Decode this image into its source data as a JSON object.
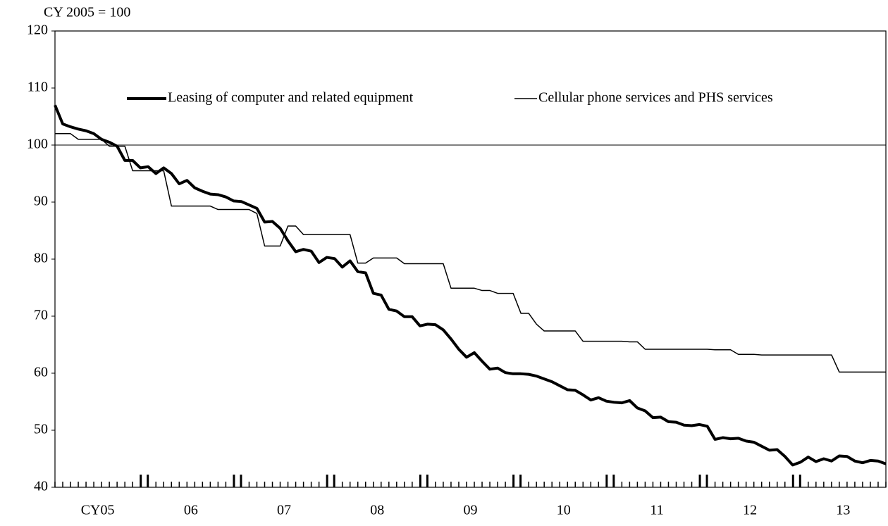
{
  "chart_data": {
    "type": "line",
    "y_label": "CY 2005 = 100",
    "categories": [
      null,
      null,
      null,
      null,
      null,
      null,
      "CY05",
      null,
      null,
      null,
      null,
      null,
      null,
      null,
      null,
      null,
      null,
      null,
      "06",
      null,
      null,
      null,
      null,
      null,
      null,
      null,
      null,
      null,
      null,
      null,
      "07",
      null,
      null,
      null,
      null,
      null,
      null,
      null,
      null,
      null,
      null,
      null,
      "08",
      null,
      null,
      null,
      null,
      null,
      null,
      null,
      null,
      null,
      null,
      null,
      "09",
      null,
      null,
      null,
      null,
      null,
      null,
      null,
      null,
      null,
      null,
      null,
      "10",
      null,
      null,
      null,
      null,
      null,
      null,
      null,
      null,
      null,
      null,
      null,
      "11",
      null,
      null,
      null,
      null,
      null,
      null,
      null,
      null,
      null,
      null,
      null,
      "12",
      null,
      null,
      null,
      null,
      null,
      null,
      null,
      null,
      null,
      null,
      null,
      "13",
      null,
      null,
      null,
      null,
      null
    ],
    "series": [
      {
        "name": "Leasing of computer and related equipment",
        "color": "#000000",
        "width": 4,
        "values": [
          107,
          103.7,
          103.2,
          102.8,
          102.5,
          102,
          101,
          100.5,
          99.8,
          97.3,
          97.3,
          96,
          96.2,
          95,
          96,
          95,
          93.2,
          93.8,
          92.5,
          91.9,
          91.4,
          91.3,
          90.9,
          90.2,
          90.1,
          89.5,
          88.9,
          86.5,
          86.6,
          85.4,
          83.2,
          81.3,
          81.7,
          81.4,
          79.4,
          80.3,
          80.1,
          78.6,
          79.7,
          77.8,
          77.6,
          74,
          73.7,
          71.2,
          70.9,
          69.9,
          69.9,
          68.3,
          68.6,
          68.5,
          67.6,
          66,
          64.2,
          62.8,
          63.6,
          62.1,
          60.7,
          60.9,
          60.1,
          59.9,
          59.9,
          59.8,
          59.5,
          59,
          58.5,
          57.8,
          57.1,
          57,
          56.2,
          55.3,
          55.7,
          55.1,
          54.9,
          54.8,
          55.2,
          53.9,
          53.4,
          52.2,
          52.3,
          51.5,
          51.4,
          50.9,
          50.8,
          51,
          50.7,
          48.4,
          48.7,
          48.5,
          48.6,
          48.1,
          47.9,
          47.2,
          46.5,
          46.6,
          45.4,
          43.9,
          44.4,
          45.3,
          44.5,
          45,
          44.6,
          45.5,
          45.4,
          44.6,
          44.3,
          44.7,
          44.6,
          44.1
        ]
      },
      {
        "name": "Cellular phone services and PHS services",
        "color": "#000000",
        "width": 1.5,
        "values": [
          102,
          102,
          102,
          101,
          101,
          101,
          101,
          99.8,
          99.8,
          99.8,
          95.5,
          95.5,
          95.5,
          95.5,
          95.5,
          89.3,
          89.3,
          89.3,
          89.3,
          89.3,
          89.3,
          88.7,
          88.7,
          88.7,
          88.7,
          88.7,
          88,
          82.3,
          82.3,
          82.3,
          85.8,
          85.8,
          84.3,
          84.3,
          84.3,
          84.3,
          84.3,
          84.3,
          84.3,
          79.3,
          79.3,
          80.2,
          80.2,
          80.2,
          80.2,
          79.2,
          79.2,
          79.2,
          79.2,
          79.2,
          79.2,
          74.9,
          74.9,
          74.9,
          74.9,
          74.5,
          74.5,
          74,
          74,
          74,
          70.5,
          70.5,
          68.6,
          67.4,
          67.4,
          67.4,
          67.4,
          67.4,
          65.6,
          65.6,
          65.6,
          65.6,
          65.6,
          65.6,
          65.5,
          65.5,
          64.2,
          64.2,
          64.2,
          64.2,
          64.2,
          64.2,
          64.2,
          64.2,
          64.2,
          64.1,
          64.1,
          64.1,
          63.3,
          63.3,
          63.3,
          63.2,
          63.2,
          63.2,
          63.2,
          63.2,
          63.2,
          63.2,
          63.2,
          63.2,
          63.2,
          60.2,
          60.2,
          60.2,
          60.2,
          60.2,
          60.2,
          60.2
        ]
      }
    ],
    "ylim": [
      40,
      120
    ],
    "yticks": [
      40,
      50,
      60,
      70,
      80,
      90,
      100,
      110,
      120
    ],
    "hline": 100
  }
}
